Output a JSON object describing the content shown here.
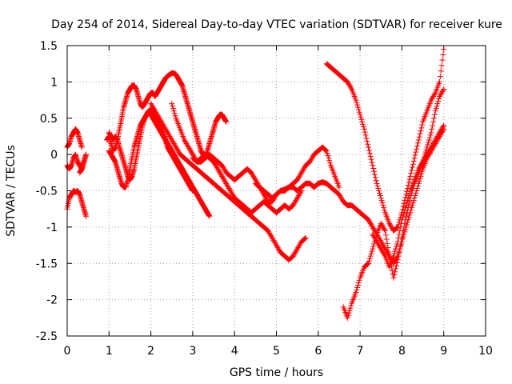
{
  "chart_data": {
    "type": "scatter",
    "title": "Day 254 of 2014, Sidereal Day-to-day VTEC variation (SDTVAR) for receiver kure",
    "xlabel": "GPS time / hours",
    "ylabel": "SDTVAR / TECUs",
    "xlim": [
      0,
      10
    ],
    "ylim": [
      -2.5,
      1.5
    ],
    "xticks": [
      "0",
      "1",
      "2",
      "3",
      "4",
      "5",
      "6",
      "7",
      "8",
      "9",
      "10"
    ],
    "yticks": [
      "-2.5",
      "-2",
      "-1.5",
      "-1",
      "-0.5",
      "0",
      "0.5",
      "1",
      "1.5"
    ],
    "grid": true,
    "marker": "plus",
    "color": "#ff0000",
    "series": [
      {
        "x": [
          0.0,
          0.05,
          0.1,
          0.15,
          0.2,
          0.25,
          0.3,
          0.35,
          0.4,
          0.45
        ],
        "y": [
          -0.75,
          -0.6,
          -0.55,
          -0.5,
          -0.52,
          -0.5,
          -0.55,
          -0.65,
          -0.75,
          -0.85
        ]
      },
      {
        "x": [
          0.0,
          0.05,
          0.1,
          0.15,
          0.2,
          0.25,
          0.3,
          0.35
        ],
        "y": [
          0.1,
          0.15,
          0.25,
          0.3,
          0.35,
          0.3,
          0.2,
          0.1
        ]
      },
      {
        "x": [
          0.0,
          0.05,
          0.1,
          0.15,
          0.2,
          0.25,
          0.3,
          0.35,
          0.4,
          0.45
        ],
        "y": [
          -0.15,
          -0.2,
          -0.15,
          -0.05,
          0.0,
          -0.1,
          -0.15,
          -0.2,
          -0.1,
          0.0
        ]
      },
      {
        "x": [
          0.3,
          0.35,
          0.4,
          0.45
        ],
        "y": [
          -0.25,
          -0.2,
          -0.1,
          0.0
        ]
      },
      {
        "x": [
          0.95,
          1.0,
          1.05,
          1.1,
          1.15,
          1.2,
          1.25,
          1.3,
          1.35,
          1.4,
          1.45,
          1.5,
          1.55,
          1.6,
          1.65,
          1.7,
          1.75,
          1.8,
          1.85,
          1.9,
          1.95,
          2.0,
          2.05,
          2.1,
          2.15,
          2.2,
          2.25,
          2.3,
          2.35,
          2.4,
          2.45,
          2.5,
          2.55,
          2.6,
          2.65,
          2.7,
          2.75,
          2.8,
          2.85,
          2.9,
          2.95,
          3.0,
          3.05,
          3.1,
          3.15,
          3.2,
          3.25,
          3.3,
          3.35,
          3.4,
          3.45,
          3.5,
          3.55,
          3.6,
          3.65,
          3.7,
          3.75,
          3.8
        ],
        "y": [
          0.2,
          0.25,
          0.15,
          0.05,
          0.1,
          0.2,
          0.35,
          0.5,
          0.65,
          0.75,
          0.85,
          0.9,
          0.95,
          0.95,
          0.9,
          0.8,
          0.7,
          0.65,
          0.7,
          0.75,
          0.8,
          0.85,
          0.85,
          0.8,
          0.85,
          0.9,
          0.95,
          1.0,
          1.05,
          1.08,
          1.1,
          1.12,
          1.12,
          1.1,
          1.05,
          1.0,
          0.95,
          0.85,
          0.75,
          0.65,
          0.55,
          0.45,
          0.35,
          0.25,
          0.15,
          0.05,
          0.0,
          -0.05,
          0.05,
          0.15,
          0.25,
          0.35,
          0.45,
          0.5,
          0.55,
          0.55,
          0.5,
          0.45
        ]
      },
      {
        "x": [
          1.0,
          1.05,
          1.1,
          1.15,
          1.2,
          1.25,
          1.3,
          1.35,
          1.4,
          1.45,
          1.5,
          1.55,
          1.6,
          1.65,
          1.7,
          1.75,
          1.8,
          1.85,
          1.9,
          1.95,
          2.0,
          2.05,
          2.1,
          2.15,
          2.2,
          2.25,
          2.3,
          2.35,
          2.4,
          2.45,
          2.5,
          2.55,
          2.6,
          2.65,
          2.7,
          2.75,
          2.8,
          2.85,
          2.9,
          2.95,
          3.0,
          3.05,
          3.1,
          3.15,
          3.2,
          3.25,
          3.3,
          3.35,
          3.4
        ],
        "y": [
          0.05,
          0.0,
          -0.05,
          -0.1,
          -0.2,
          -0.3,
          -0.4,
          -0.45,
          -0.45,
          -0.35,
          -0.2,
          -0.05,
          0.1,
          0.2,
          0.3,
          0.4,
          0.45,
          0.5,
          0.55,
          0.6,
          0.55,
          0.5,
          0.45,
          0.4,
          0.35,
          0.3,
          0.25,
          0.2,
          0.15,
          0.1,
          0.05,
          0.0,
          -0.05,
          -0.1,
          -0.15,
          -0.2,
          -0.25,
          -0.3,
          -0.35,
          -0.4,
          -0.45,
          -0.5,
          -0.55,
          -0.6,
          -0.65,
          -0.7,
          -0.75,
          -0.8,
          -0.85
        ]
      },
      {
        "x": [
          1.0,
          1.05,
          1.1,
          1.15,
          1.2,
          1.25,
          1.3,
          1.35,
          1.4,
          1.45,
          1.5,
          1.55,
          1.6,
          1.65,
          1.7,
          1.75,
          1.8,
          1.85,
          1.9,
          1.95,
          2.0,
          2.05,
          2.1,
          2.15,
          2.2,
          2.25,
          2.3,
          2.35,
          2.4,
          2.45,
          2.5,
          2.55,
          2.6,
          2.65,
          2.7,
          2.75,
          2.8,
          2.85,
          2.9,
          2.95,
          3.0
        ],
        "y": [
          0.3,
          0.25,
          0.2,
          0.25,
          0.2,
          0.1,
          0.0,
          -0.1,
          -0.2,
          -0.3,
          -0.35,
          -0.3,
          -0.2,
          -0.05,
          0.1,
          0.25,
          0.4,
          0.5,
          0.55,
          0.6,
          0.62,
          0.6,
          0.55,
          0.5,
          0.45,
          0.4,
          0.3,
          0.2,
          0.1,
          0.05,
          0.0,
          -0.05,
          -0.1,
          -0.15,
          -0.2,
          -0.25,
          -0.3,
          -0.35,
          -0.4,
          -0.45,
          -0.5
        ]
      },
      {
        "x": [
          2.0,
          2.1,
          2.2,
          2.3,
          2.4,
          2.5,
          2.6,
          2.7,
          2.8,
          2.9,
          3.0,
          3.1,
          3.2,
          3.3,
          3.4,
          3.5,
          3.6,
          3.7,
          3.8,
          3.9,
          4.0,
          4.1,
          4.2,
          4.3,
          4.4,
          4.5,
          4.6,
          4.7,
          4.8,
          4.9,
          5.0,
          5.1,
          5.2,
          5.3,
          5.4,
          5.5,
          5.6,
          5.7
        ],
        "y": [
          0.7,
          0.6,
          0.5,
          0.4,
          0.3,
          0.2,
          0.1,
          0.0,
          -0.05,
          -0.1,
          -0.15,
          -0.2,
          -0.25,
          -0.3,
          -0.35,
          -0.4,
          -0.45,
          -0.5,
          -0.55,
          -0.6,
          -0.65,
          -0.7,
          -0.75,
          -0.8,
          -0.85,
          -0.9,
          -0.95,
          -1.0,
          -1.05,
          -1.15,
          -1.25,
          -1.35,
          -1.4,
          -1.45,
          -1.4,
          -1.3,
          -1.2,
          -1.15
        ]
      },
      {
        "x": [
          2.5,
          2.6,
          2.7,
          2.8,
          2.9,
          3.0,
          3.1,
          3.2,
          3.3,
          3.4,
          3.5,
          3.6,
          3.7,
          3.8,
          3.9,
          4.0,
          4.1,
          4.2,
          4.3,
          4.4,
          4.5,
          4.6,
          4.7,
          4.8,
          4.9,
          5.0,
          5.1,
          5.2,
          5.3,
          5.4,
          5.5,
          5.6
        ],
        "y": [
          0.7,
          0.5,
          0.35,
          0.2,
          0.1,
          0.0,
          -0.1,
          -0.05,
          0.0,
          -0.05,
          -0.1,
          -0.2,
          -0.3,
          -0.4,
          -0.5,
          -0.6,
          -0.65,
          -0.7,
          -0.75,
          -0.8,
          -0.75,
          -0.7,
          -0.65,
          -0.7,
          -0.75,
          -0.8,
          -0.75,
          -0.7,
          -0.75,
          -0.7,
          -0.6,
          -0.5
        ]
      },
      {
        "x": [
          3.0,
          3.1,
          3.2,
          3.3,
          3.4,
          3.5,
          3.6,
          3.7,
          3.8,
          3.9,
          4.0,
          4.1,
          4.2,
          4.3,
          4.4,
          4.5,
          4.6,
          4.7,
          4.8,
          4.9,
          5.0,
          5.1,
          5.2,
          5.3,
          5.4,
          5.5,
          5.6,
          5.7,
          5.8,
          5.9,
          6.0,
          6.1,
          6.2,
          6.3,
          6.4,
          6.5
        ],
        "y": [
          -0.05,
          -0.1,
          -0.1,
          -0.05,
          0.0,
          -0.05,
          -0.1,
          -0.15,
          -0.25,
          -0.3,
          -0.35,
          -0.3,
          -0.25,
          -0.2,
          -0.25,
          -0.35,
          -0.45,
          -0.55,
          -0.65,
          -0.65,
          -0.55,
          -0.5,
          -0.48,
          -0.45,
          -0.4,
          -0.35,
          -0.25,
          -0.15,
          -0.1,
          0.0,
          0.05,
          0.1,
          0.05,
          -0.15,
          -0.3,
          -0.45
        ]
      },
      {
        "x": [
          4.5,
          4.6,
          4.7,
          4.8,
          4.9,
          5.0,
          5.1,
          5.2,
          5.3,
          5.4,
          5.5,
          5.6,
          5.7,
          5.8,
          5.9,
          6.0,
          6.1,
          6.2,
          6.3,
          6.4,
          6.5,
          6.6,
          6.7,
          6.8,
          6.9,
          7.0,
          7.1,
          7.2,
          7.3,
          7.4,
          7.5,
          7.6,
          7.7,
          7.8,
          7.9,
          8.0,
          8.1,
          8.2,
          8.3,
          8.4,
          8.5,
          8.6,
          8.7,
          8.8,
          8.9,
          9.0
        ],
        "y": [
          -0.4,
          -0.45,
          -0.5,
          -0.55,
          -0.6,
          -0.55,
          -0.5,
          -0.5,
          -0.45,
          -0.45,
          -0.5,
          -0.45,
          -0.4,
          -0.4,
          -0.45,
          -0.4,
          -0.38,
          -0.4,
          -0.45,
          -0.5,
          -0.55,
          -0.65,
          -0.7,
          -0.7,
          -0.75,
          -0.8,
          -0.85,
          -0.9,
          -1.0,
          -1.1,
          -1.2,
          -1.3,
          -1.4,
          -1.5,
          -1.4,
          -1.2,
          -1.0,
          -0.8,
          -0.6,
          -0.4,
          -0.2,
          -0.05,
          0.05,
          0.15,
          0.25,
          0.35
        ]
      },
      {
        "x": [
          6.2,
          6.3,
          6.4,
          6.5,
          6.6,
          6.7,
          6.8,
          6.9,
          7.0,
          7.1,
          7.2,
          7.3,
          7.4,
          7.5,
          7.6,
          7.7,
          7.8,
          7.9,
          8.0,
          8.1,
          8.2,
          8.3,
          8.4,
          8.5,
          8.6,
          8.7,
          8.8,
          8.9,
          9.0
        ],
        "y": [
          1.25,
          1.2,
          1.15,
          1.1,
          1.05,
          1.0,
          0.9,
          0.75,
          0.55,
          0.35,
          0.1,
          -0.15,
          -0.4,
          -0.6,
          -0.8,
          -0.95,
          -1.05,
          -1.0,
          -0.8,
          -0.55,
          -0.3,
          -0.05,
          0.2,
          0.45,
          0.6,
          0.75,
          0.85,
          1.0,
          1.45
        ]
      },
      {
        "x": [
          6.6,
          6.7,
          6.8,
          6.9,
          7.0,
          7.1,
          7.2,
          7.3,
          7.4,
          7.5,
          7.6,
          7.7,
          7.8,
          7.9,
          8.0,
          8.1,
          8.2,
          8.3,
          8.4,
          8.5,
          8.6,
          8.7,
          8.8,
          8.9,
          9.0
        ],
        "y": [
          -2.1,
          -2.25,
          -2.05,
          -1.9,
          -1.7,
          -1.55,
          -1.5,
          -1.3,
          -1.1,
          -0.95,
          -1.05,
          -1.4,
          -1.7,
          -1.45,
          -1.15,
          -0.85,
          -0.6,
          -0.4,
          -0.25,
          -0.1,
          0.1,
          0.3,
          0.6,
          0.8,
          0.9
        ]
      },
      {
        "x": [
          7.3,
          7.4,
          7.5,
          7.6,
          7.7,
          7.8,
          7.9,
          8.0,
          8.1,
          8.2,
          8.3,
          8.4,
          8.5,
          8.6,
          8.7,
          8.8,
          8.9,
          9.0
        ],
        "y": [
          -1.1,
          -1.2,
          -1.3,
          -1.4,
          -1.55,
          -1.4,
          -1.2,
          -0.9,
          -0.7,
          -0.5,
          -0.35,
          -0.2,
          -0.1,
          0.0,
          0.1,
          0.2,
          0.3,
          0.4
        ]
      }
    ]
  }
}
